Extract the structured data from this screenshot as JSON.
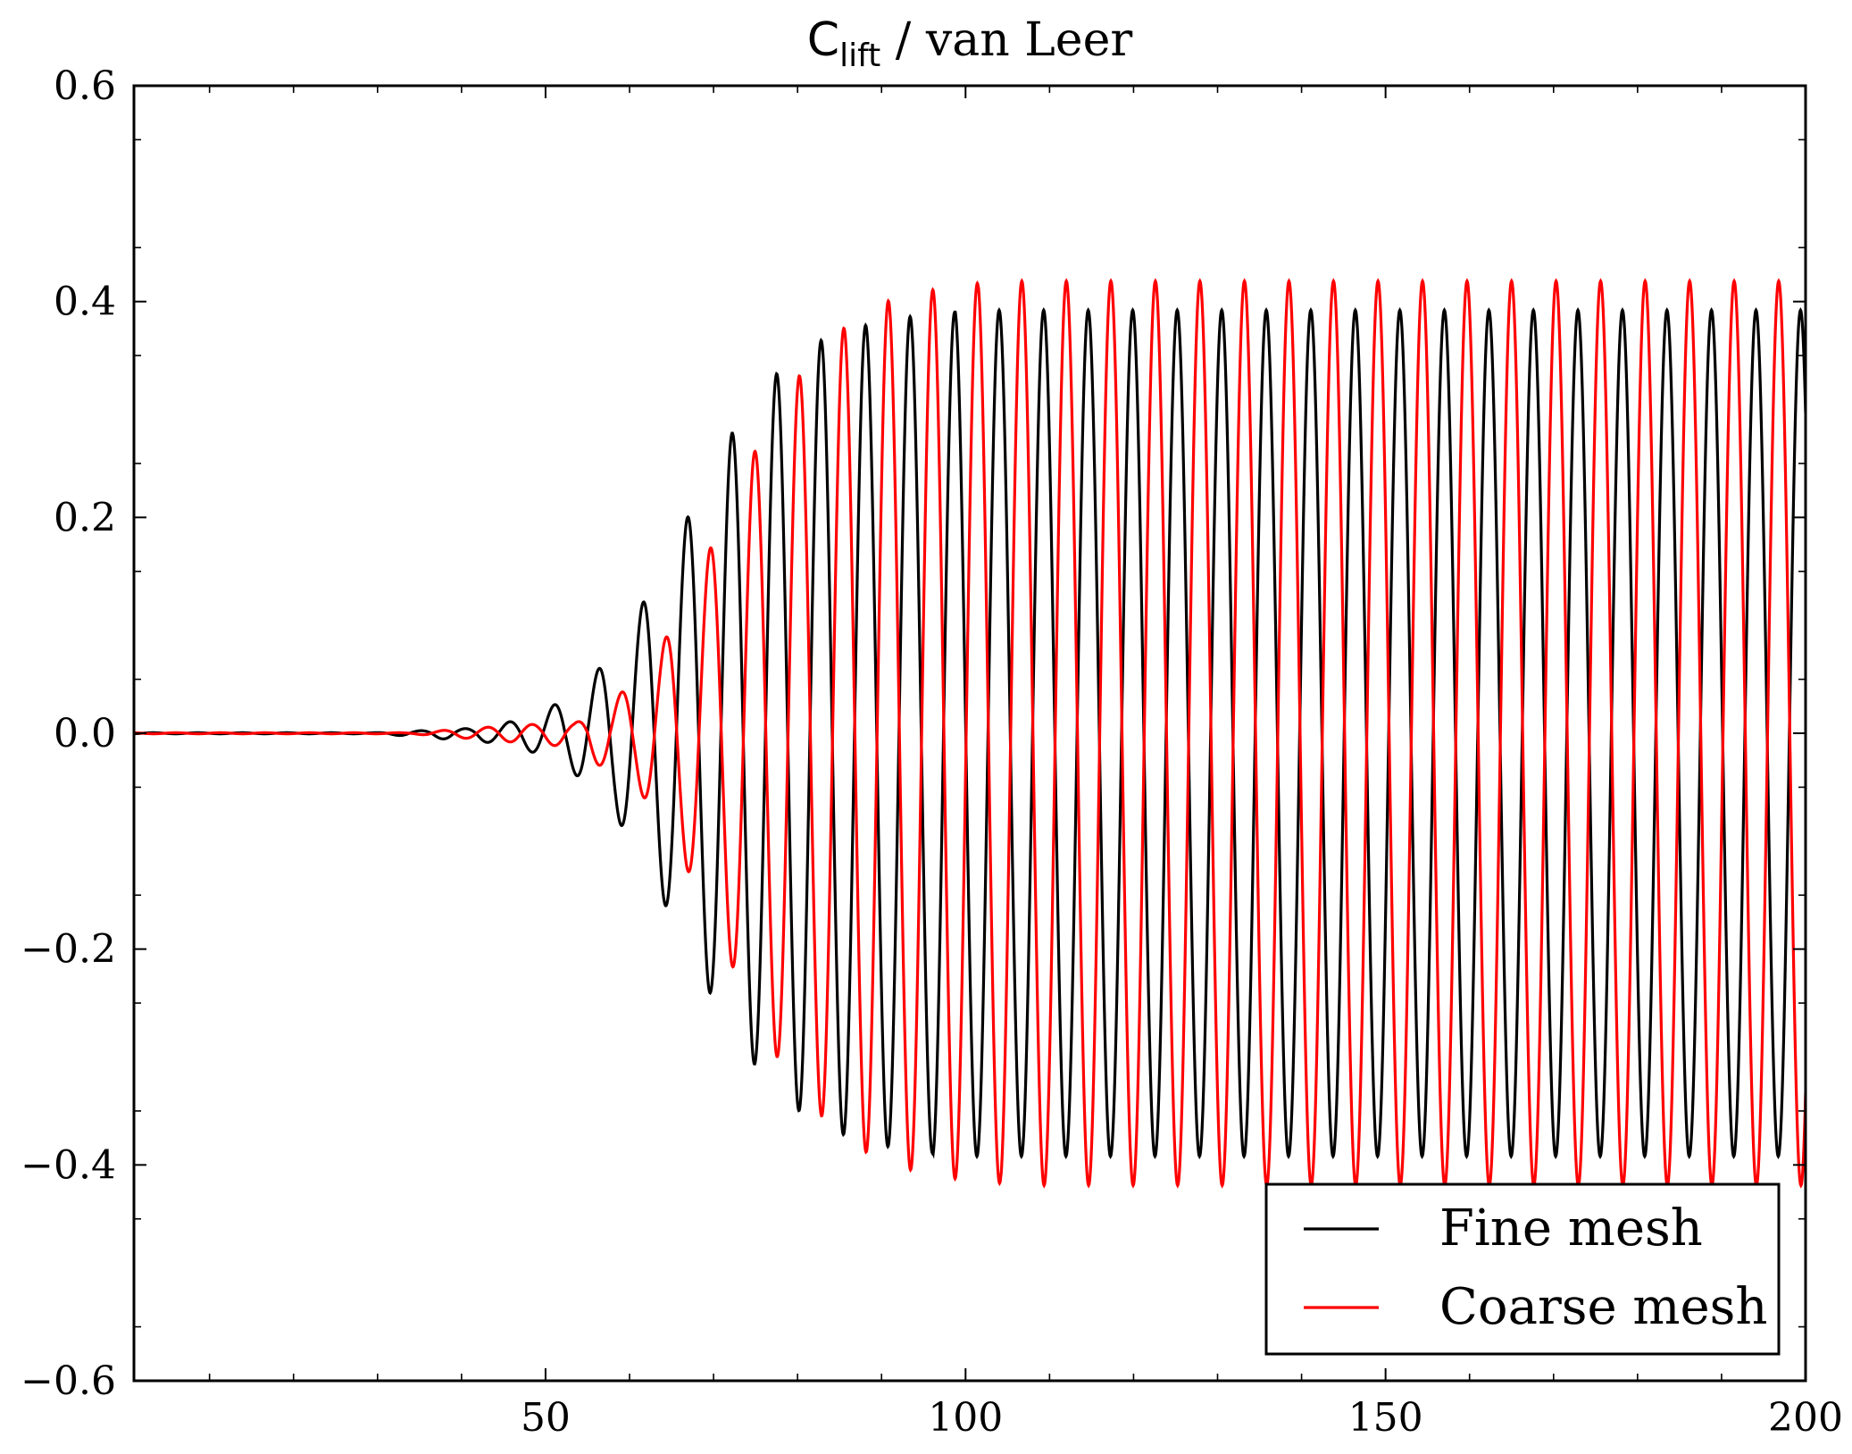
{
  "chart_data": {
    "type": "line",
    "title": {
      "symbol": "C",
      "subscript": "lift",
      "rest": " / van Leer"
    },
    "xlabel": "",
    "ylabel": "",
    "xlim": [
      1,
      200
    ],
    "ylim": [
      -0.6,
      0.6
    ],
    "xticks": [
      50,
      100,
      150,
      200
    ],
    "xtick_labels": [
      "50",
      "100",
      "150",
      "200"
    ],
    "yticks": [
      -0.6,
      -0.4,
      -0.2,
      0.0,
      0.2,
      0.4,
      0.6
    ],
    "ytick_labels": [
      "−0.6",
      "−0.4",
      "−0.2",
      "0.0",
      "0.2",
      "0.4",
      "0.6"
    ],
    "grid": false,
    "legend_position": "lower-right",
    "series": [
      {
        "name": "Fine mesh",
        "color": "#000000",
        "period": 5.3,
        "phase_peak_x": 72.2,
        "onset_x": 30,
        "growth_peaks": [
          {
            "x": 42.3,
            "max": 0.005
          },
          {
            "x": 49.0,
            "max": 0.016
          },
          {
            "x": 55.3,
            "max": 0.048
          },
          {
            "x": 61.2,
            "max": 0.115
          },
          {
            "x": 66.9,
            "max": 0.2
          },
          {
            "x": 72.2,
            "max": 0.278
          },
          {
            "x": 77.5,
            "max": 0.333
          },
          {
            "x": 82.8,
            "max": 0.364
          },
          {
            "x": 88.1,
            "max": 0.378
          },
          {
            "x": 93.4,
            "max": 0.386
          },
          {
            "x": 98.7,
            "max": 0.39
          }
        ],
        "growth_troughs": [
          {
            "x": 45.6,
            "min": -0.01
          },
          {
            "x": 52.3,
            "min": -0.028
          },
          {
            "x": 58.4,
            "min": -0.077
          },
          {
            "x": 64.1,
            "min": -0.157
          },
          {
            "x": 69.6,
            "min": -0.241
          },
          {
            "x": 74.9,
            "min": -0.307
          },
          {
            "x": 80.2,
            "min": -0.35
          },
          {
            "x": 85.5,
            "min": -0.372
          },
          {
            "x": 90.8,
            "min": -0.383
          },
          {
            "x": 96.1,
            "min": -0.389
          }
        ],
        "steady_max": 0.392,
        "steady_min": -0.392
      },
      {
        "name": "Coarse mesh",
        "color": "#ff0000",
        "period": 5.3,
        "phase_peak_x": 80.2,
        "onset_x": 34,
        "growth_peaks": [
          {
            "x": 47.4,
            "max": 0.008
          },
          {
            "x": 53.4,
            "max": 0.009
          },
          {
            "x": 57.8,
            "max": 0.027
          },
          {
            "x": 63.7,
            "max": 0.079
          },
          {
            "x": 69.3,
            "max": 0.166
          },
          {
            "x": 74.6,
            "max": 0.257
          },
          {
            "x": 80.2,
            "max": 0.331
          },
          {
            "x": 85.6,
            "max": 0.376
          },
          {
            "x": 90.9,
            "max": 0.401
          },
          {
            "x": 96.2,
            "max": 0.411
          },
          {
            "x": 101.5,
            "max": 0.417
          }
        ],
        "growth_troughs": [
          {
            "x": 52.0,
            "min": -0.012
          },
          {
            "x": 60.7,
            "min": -0.047
          },
          {
            "x": 66.5,
            "min": -0.12
          },
          {
            "x": 72.0,
            "min": -0.212
          },
          {
            "x": 77.4,
            "min": -0.298
          },
          {
            "x": 82.9,
            "min": -0.355
          },
          {
            "x": 88.3,
            "min": -0.389
          },
          {
            "x": 93.6,
            "min": -0.405
          },
          {
            "x": 98.9,
            "min": -0.413
          },
          {
            "x": 104.2,
            "min": -0.417
          }
        ],
        "steady_max": 0.419,
        "steady_min": -0.419
      }
    ]
  }
}
